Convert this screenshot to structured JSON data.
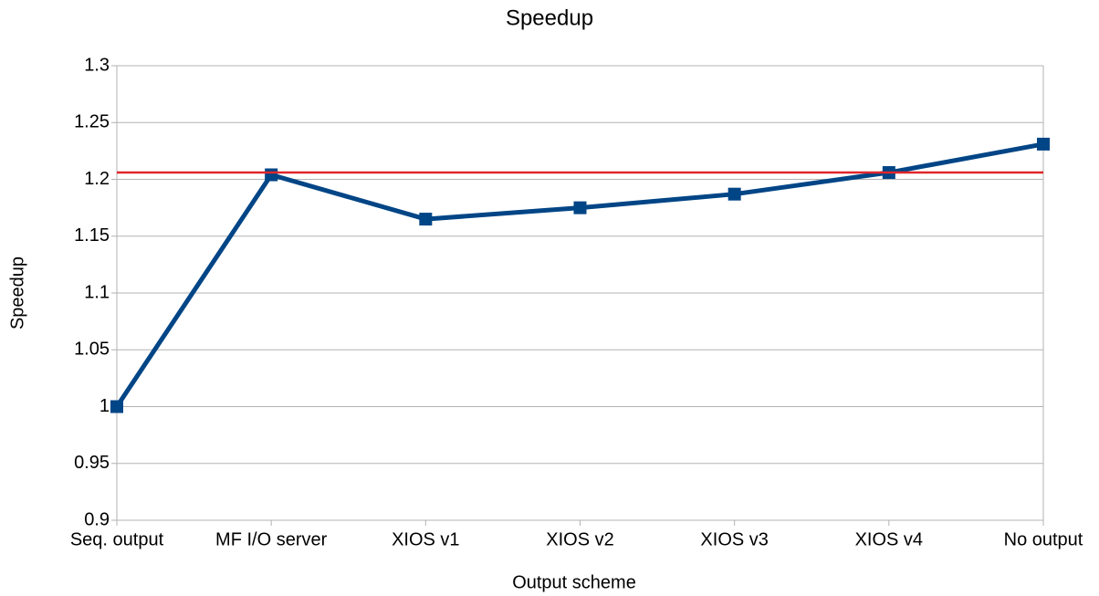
{
  "chart_data": {
    "type": "line",
    "title": "Speedup",
    "x_label": "Output scheme",
    "y_label": "Speedup",
    "categories": [
      "Seq. output",
      "MF I/O server",
      "XIOS v1",
      "XIOS v2",
      "XIOS v3",
      "XIOS v4",
      "No output"
    ],
    "series": [
      {
        "name": "Speedup",
        "color": "#004586",
        "values": [
          1.0,
          1.204,
          1.165,
          1.175,
          1.187,
          1.206,
          1.231
        ]
      }
    ],
    "reference_line": {
      "value": 1.206,
      "color": "#e0272a"
    },
    "ylim": [
      0.9,
      1.3
    ],
    "yticks": [
      0.9,
      0.95,
      1,
      1.05,
      1.1,
      1.15,
      1.2,
      1.25,
      1.3
    ],
    "grid": true
  }
}
